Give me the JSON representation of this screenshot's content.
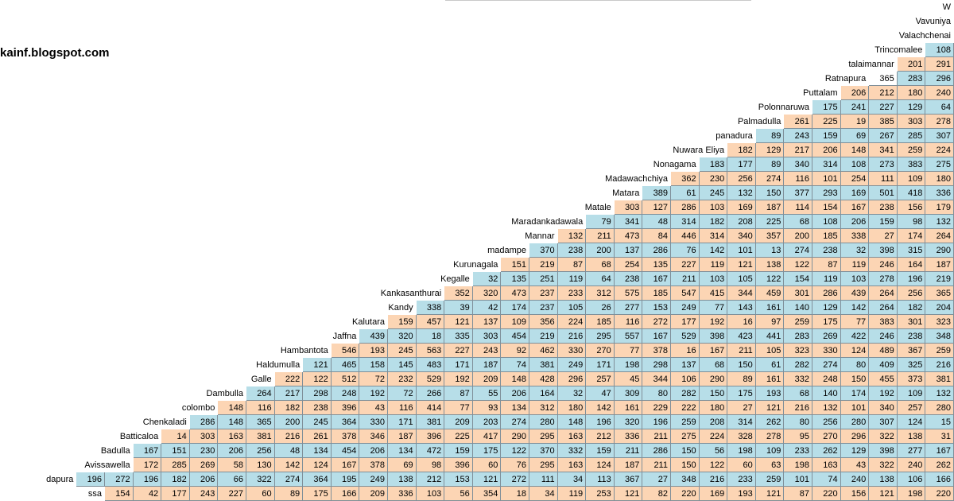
{
  "site": "kainf.blogspot.com",
  "colors": {
    "orange": "#fcd5b4",
    "blue": "#b7dee8",
    "white": "#ffffff"
  },
  "rows": [
    {
      "label": "W",
      "values": []
    },
    {
      "label": "Vavuniya",
      "values": []
    },
    {
      "label": "Valachchenai",
      "values": []
    },
    {
      "label": "Trincomalee",
      "values": [
        "108"
      ]
    },
    {
      "label": "talaimannar",
      "values": [
        "201",
        "291"
      ]
    },
    {
      "label": "Ratnapura",
      "values": [
        "365",
        "283",
        "296"
      ]
    },
    {
      "label": "Puttalam",
      "values": [
        "206",
        "212",
        "180",
        "240"
      ]
    },
    {
      "label": "Polonnaruwa",
      "values": [
        "175",
        "241",
        "227",
        "129",
        "64"
      ]
    },
    {
      "label": "Palmadulla",
      "values": [
        "261",
        "225",
        "19",
        "385",
        "303",
        "278"
      ]
    },
    {
      "label": "panadura",
      "values": [
        "89",
        "243",
        "159",
        "69",
        "267",
        "285",
        "307"
      ]
    },
    {
      "label": "Nuwara Eliya",
      "values": [
        "182",
        "129",
        "217",
        "206",
        "148",
        "341",
        "259",
        "224"
      ]
    },
    {
      "label": "Nonagama",
      "values": [
        "183",
        "177",
        "89",
        "340",
        "314",
        "108",
        "273",
        "383",
        "275"
      ]
    },
    {
      "label": "Madawachchiya",
      "values": [
        "362",
        "230",
        "256",
        "274",
        "116",
        "101",
        "254",
        "111",
        "109",
        "180"
      ]
    },
    {
      "label": "Matara",
      "values": [
        "389",
        "61",
        "245",
        "132",
        "150",
        "377",
        "293",
        "169",
        "501",
        "418",
        "336"
      ]
    },
    {
      "label": "Matale",
      "values": [
        "303",
        "127",
        "286",
        "103",
        "169",
        "187",
        "114",
        "154",
        "167",
        "238",
        "156",
        "179"
      ]
    },
    {
      "label": "Maradankadawala",
      "values": [
        "79",
        "341",
        "48",
        "314",
        "182",
        "208",
        "225",
        "68",
        "108",
        "206",
        "159",
        "98",
        "132"
      ]
    },
    {
      "label": "Mannar",
      "values": [
        "132",
        "211",
        "473",
        "84",
        "446",
        "314",
        "340",
        "357",
        "200",
        "185",
        "338",
        "27",
        "174",
        "264"
      ]
    },
    {
      "label": "madampe",
      "values": [
        "370",
        "238",
        "200",
        "137",
        "286",
        "76",
        "142",
        "101",
        "13",
        "274",
        "238",
        "32",
        "398",
        "315",
        "290"
      ]
    },
    {
      "label": "Kurunagala",
      "values": [
        "151",
        "219",
        "87",
        "68",
        "254",
        "135",
        "227",
        "119",
        "121",
        "138",
        "122",
        "87",
        "119",
        "246",
        "164",
        "187"
      ]
    },
    {
      "label": "Kegalle",
      "values": [
        "32",
        "135",
        "251",
        "119",
        "64",
        "238",
        "167",
        "211",
        "103",
        "105",
        "122",
        "154",
        "119",
        "103",
        "278",
        "196",
        "219"
      ]
    },
    {
      "label": "Kankasanthurai",
      "values": [
        "352",
        "320",
        "473",
        "237",
        "233",
        "312",
        "575",
        "185",
        "547",
        "415",
        "344",
        "459",
        "301",
        "286",
        "439",
        "264",
        "256",
        "365"
      ]
    },
    {
      "label": "Kandy",
      "values": [
        "338",
        "39",
        "42",
        "174",
        "237",
        "105",
        "26",
        "277",
        "153",
        "249",
        "77",
        "143",
        "161",
        "140",
        "129",
        "142",
        "264",
        "182",
        "204"
      ]
    },
    {
      "label": "Kalutara",
      "values": [
        "159",
        "457",
        "121",
        "137",
        "109",
        "356",
        "224",
        "185",
        "116",
        "272",
        "177",
        "192",
        "16",
        "97",
        "259",
        "175",
        "77",
        "383",
        "301",
        "323"
      ]
    },
    {
      "label": "Jaffna",
      "values": [
        "439",
        "320",
        "18",
        "335",
        "303",
        "454",
        "219",
        "216",
        "295",
        "557",
        "167",
        "529",
        "398",
        "423",
        "441",
        "283",
        "269",
        "422",
        "246",
        "238",
        "348"
      ]
    },
    {
      "label": "Hambantota",
      "values": [
        "546",
        "193",
        "245",
        "563",
        "227",
        "243",
        "92",
        "462",
        "330",
        "270",
        "77",
        "378",
        "16",
        "167",
        "211",
        "105",
        "323",
        "330",
        "124",
        "489",
        "367",
        "259"
      ]
    },
    {
      "label": "Haldumulla",
      "values": [
        "121",
        "465",
        "158",
        "145",
        "483",
        "171",
        "187",
        "74",
        "381",
        "249",
        "171",
        "198",
        "298",
        "137",
        "68",
        "150",
        "61",
        "282",
        "274",
        "80",
        "409",
        "325",
        "216"
      ]
    },
    {
      "label": "Galle",
      "values": [
        "222",
        "122",
        "512",
        "72",
        "232",
        "529",
        "192",
        "209",
        "148",
        "428",
        "296",
        "257",
        "45",
        "344",
        "106",
        "290",
        "89",
        "161",
        "332",
        "248",
        "150",
        "455",
        "373",
        "381"
      ]
    },
    {
      "label": "Dambulla",
      "values": [
        "264",
        "217",
        "298",
        "248",
        "192",
        "72",
        "266",
        "87",
        "55",
        "206",
        "164",
        "32",
        "47",
        "309",
        "80",
        "282",
        "150",
        "175",
        "193",
        "68",
        "140",
        "174",
        "192",
        "109",
        "132"
      ]
    },
    {
      "label": "colombo",
      "values": [
        "148",
        "116",
        "182",
        "238",
        "396",
        "43",
        "116",
        "414",
        "77",
        "93",
        "134",
        "312",
        "180",
        "142",
        "161",
        "229",
        "222",
        "180",
        "27",
        "121",
        "216",
        "132",
        "101",
        "340",
        "257",
        "280"
      ]
    },
    {
      "label": "Chenkaladi",
      "values": [
        "286",
        "148",
        "365",
        "200",
        "245",
        "364",
        "330",
        "171",
        "381",
        "209",
        "203",
        "274",
        "280",
        "148",
        "196",
        "320",
        "196",
        "259",
        "208",
        "314",
        "262",
        "80",
        "256",
        "280",
        "307",
        "124",
        "15"
      ]
    },
    {
      "label": "Batticaloa",
      "values": [
        "14",
        "303",
        "163",
        "381",
        "216",
        "261",
        "378",
        "346",
        "187",
        "396",
        "225",
        "417",
        "290",
        "295",
        "163",
        "212",
        "336",
        "211",
        "275",
        "224",
        "328",
        "278",
        "95",
        "270",
        "296",
        "322",
        "138",
        "31"
      ]
    },
    {
      "label": "Badulla",
      "values": [
        "167",
        "151",
        "230",
        "206",
        "256",
        "48",
        "134",
        "454",
        "206",
        "134",
        "472",
        "159",
        "175",
        "122",
        "370",
        "332",
        "159",
        "211",
        "286",
        "150",
        "56",
        "198",
        "109",
        "233",
        "262",
        "129",
        "398",
        "277",
        "167"
      ]
    },
    {
      "label": "Avissawella",
      "values": [
        "172",
        "285",
        "269",
        "58",
        "130",
        "142",
        "124",
        "167",
        "378",
        "69",
        "98",
        "396",
        "60",
        "76",
        "295",
        "163",
        "124",
        "187",
        "211",
        "150",
        "122",
        "60",
        "63",
        "198",
        "163",
        "43",
        "322",
        "240",
        "262"
      ]
    },
    {
      "label": "dapura",
      "values": [
        "196",
        "272",
        "196",
        "182",
        "206",
        "66",
        "322",
        "274",
        "364",
        "195",
        "249",
        "138",
        "212",
        "153",
        "121",
        "272",
        "111",
        "34",
        "113",
        "367",
        "27",
        "348",
        "216",
        "233",
        "259",
        "101",
        "74",
        "240",
        "138",
        "106",
        "166"
      ]
    },
    {
      "label": "ssa",
      "values": [
        "154",
        "42",
        "177",
        "243",
        "227",
        "60",
        "89",
        "175",
        "166",
        "209",
        "336",
        "103",
        "56",
        "354",
        "18",
        "34",
        "119",
        "253",
        "121",
        "82",
        "220",
        "169",
        "193",
        "121",
        "87",
        "220",
        "156",
        "121",
        "198",
        "220"
      ]
    }
  ]
}
